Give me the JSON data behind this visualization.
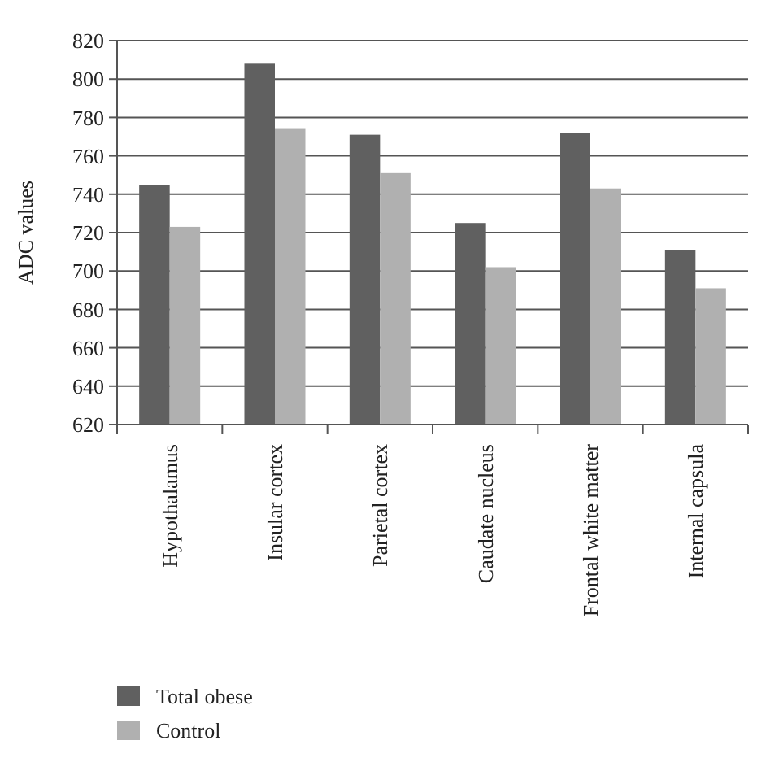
{
  "chart_data": {
    "type": "bar",
    "ylabel": "ADC values",
    "categories": [
      "Hypothalamus",
      "Insular cortex",
      "Parietal cortex",
      "Caudate nucleus",
      "Frontal white matter",
      "Internal capsula"
    ],
    "series": [
      {
        "name": "Total obese",
        "color": "#606060",
        "values": [
          745,
          808,
          771,
          725,
          772,
          711
        ]
      },
      {
        "name": "Control",
        "color": "#b0b0b0",
        "values": [
          723,
          774,
          751,
          702,
          743,
          691
        ]
      }
    ],
    "ylim": [
      620,
      820
    ],
    "yticks": [
      620,
      640,
      660,
      680,
      700,
      720,
      740,
      760,
      780,
      800,
      820
    ],
    "grid": "y",
    "legend": "bottom left"
  }
}
